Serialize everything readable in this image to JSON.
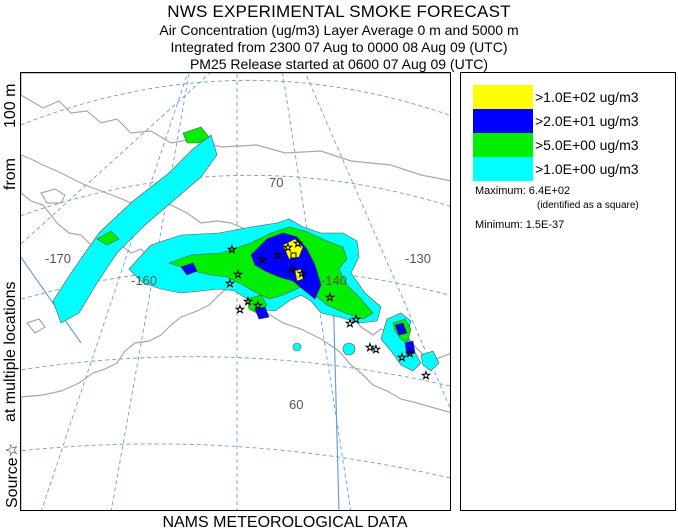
{
  "title": {
    "line1": "NWS EXPERIMENTAL SMOKE FORECAST",
    "line2": "Air Concentration (ug/m3) Layer Average    0 m and  5000 m",
    "line3": "Integrated from 2300 07 Aug to 0000 08 Aug 09 (UTC)",
    "line4": "PM25 Release started at 0600 07 Aug 09 (UTC)"
  },
  "side_label": {
    "part1": "Source☆",
    "part2": "at multiple locations",
    "part3": "from",
    "part4": "100 m"
  },
  "bottom_label": "NAMS METEOROLOGICAL DATA",
  "legend": {
    "items": [
      {
        "label": ">1.0E+02 ug/m3",
        "color": "#ffff00"
      },
      {
        "label": ">2.0E+01 ug/m3",
        "color": "#0000ff"
      },
      {
        "label": ">5.0E+00 ug/m3",
        "color": "#00ee00"
      },
      {
        "label": ">1.0E+00 ug/m3",
        "color": "#00ffff"
      }
    ],
    "maximum": "Maximum: 6.4E+02",
    "maximum_note": "(identified as a square)",
    "minimum": "Minimum: 1.5E-37"
  },
  "map": {
    "grid_labels": {
      "lat70": "70",
      "lat60": "60",
      "lon170": "-170",
      "lon160": "-160",
      "lon140": "-140",
      "lon130": "-130"
    },
    "colors": {
      "level1": "#00ffff",
      "level2": "#00ee00",
      "level3": "#0000ff",
      "level4": "#ffff00",
      "coast": "#a8a8a8",
      "grid": "#6a9fd8"
    }
  }
}
